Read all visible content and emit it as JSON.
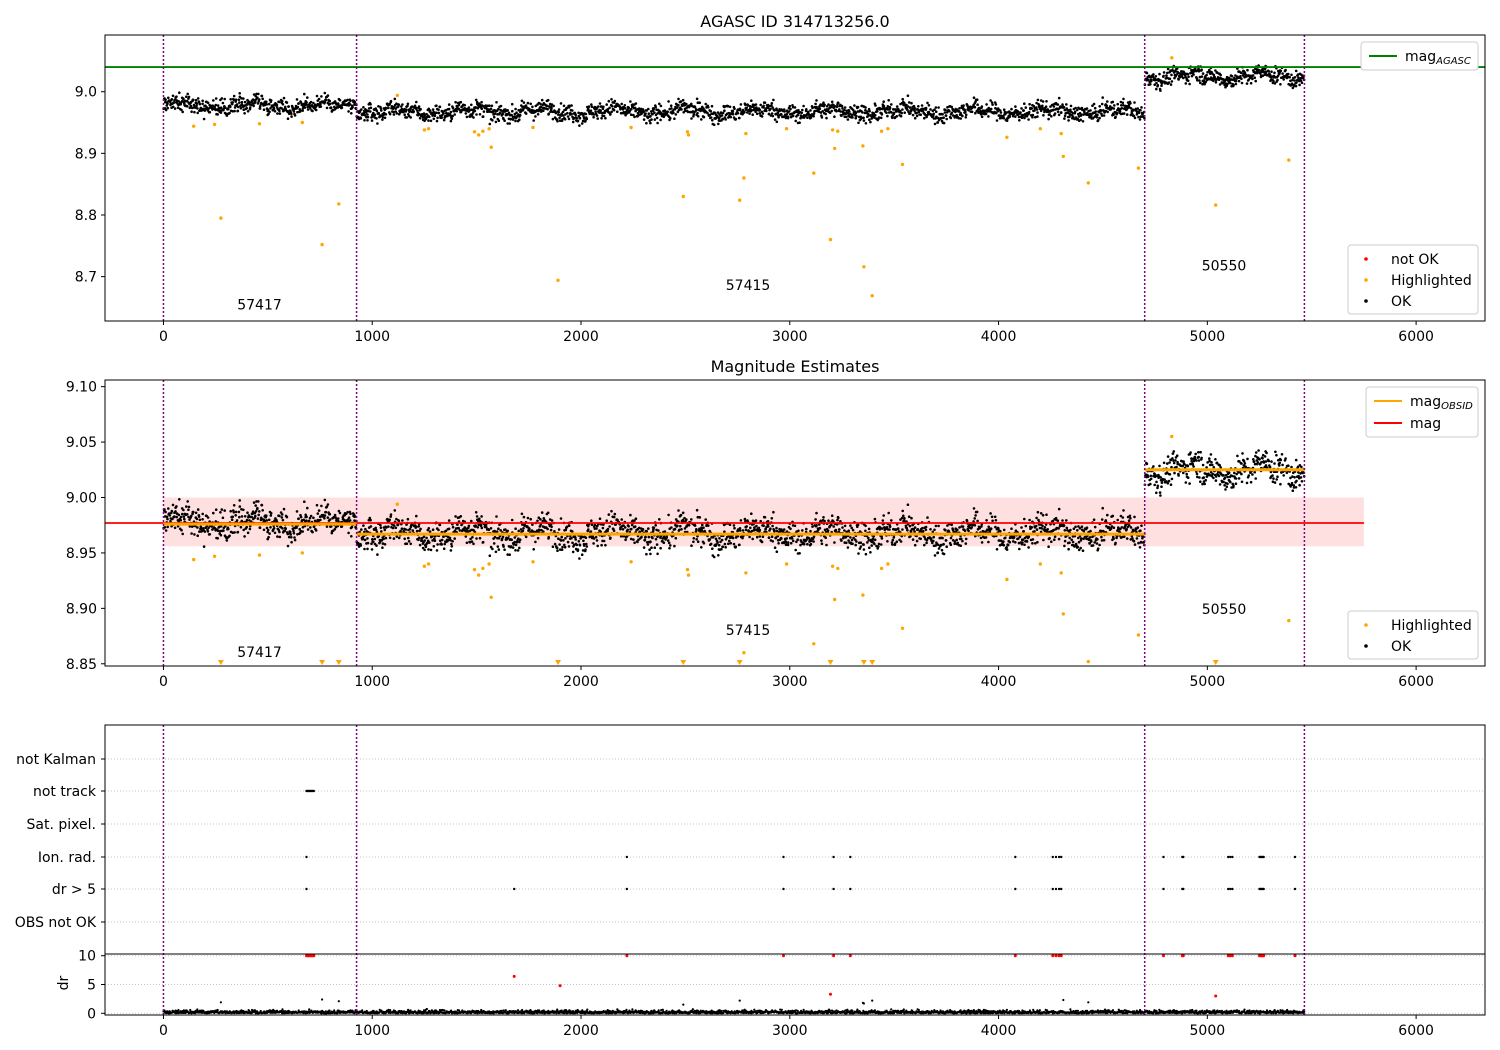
{
  "colors": {
    "ok": "#000000",
    "not_ok": "#ff0000",
    "highlighted": "#ffa500",
    "mag_agasc": "#008000",
    "mag_obsid": "#ffa500",
    "mag": "#ff0000",
    "band": "#ff0000",
    "obsid_boundary": "#800080",
    "grid": "#b0b0b0"
  },
  "chart_data": [
    {
      "type": "scatter",
      "title": "AGASC ID 314713256.0",
      "xlim": [
        -280,
        6330
      ],
      "ylim": [
        8.628,
        9.092
      ],
      "xticks": [
        0,
        1000,
        2000,
        3000,
        4000,
        5000,
        6000
      ],
      "yticks": [
        8.7,
        8.8,
        8.9,
        9.0
      ],
      "ytick_format": 1,
      "legend_lines": [
        {
          "label": "mag",
          "sub": "AGASC",
          "color": "#008000"
        }
      ],
      "legend_points": [
        {
          "label": "not OK",
          "color": "#ff0000"
        },
        {
          "label": "Highlighted",
          "color": "#ffa500"
        },
        {
          "label": "OK",
          "color": "#000000"
        }
      ],
      "hlines": [
        {
          "y": 9.04,
          "x0": -280,
          "x1": 6330,
          "color": "#008000"
        }
      ],
      "obsid_boundaries": [
        0,
        925,
        4700,
        5465
      ],
      "obsid_labels": [
        {
          "text": "57417",
          "x": 460,
          "y": 8.647
        },
        {
          "text": "57415",
          "x": 2800,
          "y": 8.678
        },
        {
          "text": "50550",
          "x": 5080,
          "y": 8.71
        }
      ],
      "ok_segments": [
        {
          "x0": 0,
          "x1": 925,
          "mean": 8.978,
          "spread": 0.012
        },
        {
          "x0": 925,
          "x1": 4700,
          "mean": 8.968,
          "spread": 0.012
        },
        {
          "x0": 4700,
          "x1": 5465,
          "mean": 9.025,
          "spread": 0.012
        }
      ],
      "highlighted": [
        [
          145,
          8.944
        ],
        [
          245,
          8.947
        ],
        [
          275,
          8.795
        ],
        [
          460,
          8.948
        ],
        [
          665,
          8.95
        ],
        [
          760,
          8.752
        ],
        [
          840,
          8.818
        ],
        [
          1120,
          8.994
        ],
        [
          1250,
          8.938
        ],
        [
          1270,
          8.94
        ],
        [
          1490,
          8.935
        ],
        [
          1510,
          8.93
        ],
        [
          1530,
          8.936
        ],
        [
          1560,
          8.94
        ],
        [
          1570,
          8.91
        ],
        [
          1770,
          8.942
        ],
        [
          1890,
          8.694
        ],
        [
          2240,
          8.942
        ],
        [
          2490,
          8.83
        ],
        [
          2510,
          8.935
        ],
        [
          2515,
          8.93
        ],
        [
          2760,
          8.824
        ],
        [
          2780,
          8.86
        ],
        [
          2790,
          8.932
        ],
        [
          2985,
          8.94
        ],
        [
          3115,
          8.868
        ],
        [
          3195,
          8.76
        ],
        [
          3205,
          8.938
        ],
        [
          3215,
          8.908
        ],
        [
          3230,
          8.936
        ],
        [
          3350,
          8.912
        ],
        [
          3355,
          8.716
        ],
        [
          3395,
          8.669
        ],
        [
          3440,
          8.936
        ],
        [
          3470,
          8.94
        ],
        [
          3540,
          8.882
        ],
        [
          4040,
          8.926
        ],
        [
          4200,
          8.94
        ],
        [
          4300,
          8.932
        ],
        [
          4310,
          8.895
        ],
        [
          4430,
          8.852
        ],
        [
          4670,
          8.876
        ],
        [
          4830,
          9.055
        ],
        [
          5040,
          8.816
        ],
        [
          5390,
          8.889
        ]
      ],
      "not_ok": [],
      "xlabel": "",
      "ylabel": ""
    },
    {
      "type": "scatter",
      "title": "Magnitude Estimates",
      "xlim": [
        -280,
        6330
      ],
      "ylim": [
        8.848,
        9.106
      ],
      "xticks": [
        0,
        1000,
        2000,
        3000,
        4000,
        5000,
        6000
      ],
      "yticks": [
        8.85,
        8.9,
        8.95,
        9.0,
        9.05,
        9.1
      ],
      "ytick_format": 2,
      "legend_lines": [
        {
          "label": "mag",
          "sub": "OBSID",
          "color": "#ffa500"
        },
        {
          "label": "mag",
          "sub": "",
          "color": "#ff0000"
        }
      ],
      "legend_points": [
        {
          "label": "Highlighted",
          "color": "#ffa500"
        },
        {
          "label": "OK",
          "color": "#000000"
        }
      ],
      "band": {
        "x0": 0,
        "x1": 5750,
        "y0": 8.956,
        "y1": 9.0
      },
      "hlines": [
        {
          "y": 8.977,
          "x0": -280,
          "x1": 5750,
          "color": "#ff0000"
        },
        {
          "y": 8.976,
          "x0": 0,
          "x1": 925,
          "color": "#ffa500"
        },
        {
          "y": 8.967,
          "x0": 925,
          "x1": 4700,
          "color": "#ffa500"
        },
        {
          "y": 9.025,
          "x0": 4700,
          "x1": 5465,
          "color": "#ffa500"
        }
      ],
      "obsid_boundaries": [
        0,
        925,
        4700,
        5465
      ],
      "obsid_labels": [
        {
          "text": "57417",
          "x": 460,
          "y": 8.856
        },
        {
          "text": "57415",
          "x": 2800,
          "y": 8.876
        },
        {
          "text": "50550",
          "x": 5080,
          "y": 8.895
        }
      ],
      "ok_segments": [
        {
          "x0": 0,
          "x1": 925,
          "mean": 8.978,
          "spread": 0.012
        },
        {
          "x0": 925,
          "x1": 4700,
          "mean": 8.968,
          "spread": 0.012
        },
        {
          "x0": 4700,
          "x1": 5465,
          "mean": 9.025,
          "spread": 0.012
        }
      ],
      "highlighted": [
        [
          145,
          8.944
        ],
        [
          245,
          8.947
        ],
        [
          460,
          8.948
        ],
        [
          665,
          8.95
        ],
        [
          1120,
          8.994
        ],
        [
          1250,
          8.938
        ],
        [
          1270,
          8.94
        ],
        [
          1490,
          8.935
        ],
        [
          1510,
          8.93
        ],
        [
          1530,
          8.936
        ],
        [
          1560,
          8.94
        ],
        [
          1570,
          8.91
        ],
        [
          1770,
          8.942
        ],
        [
          2240,
          8.942
        ],
        [
          2510,
          8.935
        ],
        [
          2515,
          8.93
        ],
        [
          2780,
          8.86
        ],
        [
          2790,
          8.932
        ],
        [
          2985,
          8.94
        ],
        [
          3115,
          8.868
        ],
        [
          3205,
          8.938
        ],
        [
          3215,
          8.908
        ],
        [
          3230,
          8.936
        ],
        [
          3350,
          8.912
        ],
        [
          3440,
          8.936
        ],
        [
          3470,
          8.94
        ],
        [
          3540,
          8.882
        ],
        [
          4040,
          8.926
        ],
        [
          4200,
          8.94
        ],
        [
          4300,
          8.932
        ],
        [
          4310,
          8.895
        ],
        [
          4430,
          8.852
        ],
        [
          4670,
          8.876
        ],
        [
          4830,
          9.055
        ],
        [
          5390,
          8.889
        ]
      ],
      "clipped_low": [
        275,
        760,
        840,
        1890,
        2490,
        2760,
        3195,
        3355,
        3395,
        5040
      ],
      "xlabel": "",
      "ylabel": ""
    },
    {
      "type": "scatter",
      "title": "",
      "xlim": [
        -280,
        6330
      ],
      "xticks": [
        0,
        1000,
        2000,
        3000,
        4000,
        5000,
        6000
      ],
      "flags_categories": [
        "not Kalman",
        "not track",
        "Sat. pixel.",
        "Ion. rad.",
        "dr > 5",
        "OBS not OK"
      ],
      "flags": {
        "not track": [
          685,
          690,
          695,
          700,
          705,
          710,
          715,
          720
        ],
        "Ion. rad.": [
          685,
          2220,
          2970,
          3210,
          3290,
          4080,
          4260,
          4275,
          4290,
          4300,
          4790,
          4880,
          4885,
          5100,
          5110,
          5120,
          5250,
          5255,
          5260,
          5265,
          5270,
          5420
        ],
        "dr > 5": [
          685,
          1680,
          2220,
          2970,
          3210,
          3290,
          4080,
          4260,
          4275,
          4290,
          4300,
          4790,
          4880,
          4885,
          5100,
          5110,
          5120,
          5250,
          5255,
          5260,
          5265,
          5270,
          5420
        ]
      },
      "dr_ylabel": "dr",
      "dr_ylim": [
        -0.3,
        10.3
      ],
      "dr_yticks": [
        0,
        5,
        10
      ],
      "dr_ok_max": 0.7,
      "dr_red": [
        [
          685,
          10
        ],
        [
          690,
          10
        ],
        [
          695,
          10
        ],
        [
          700,
          10
        ],
        [
          705,
          10
        ],
        [
          710,
          10
        ],
        [
          715,
          10
        ],
        [
          720,
          10
        ],
        [
          1680,
          6.4
        ],
        [
          1900,
          4.8
        ],
        [
          2220,
          10
        ],
        [
          2970,
          10
        ],
        [
          3195,
          3.3
        ],
        [
          3210,
          10
        ],
        [
          3290,
          10
        ],
        [
          4080,
          10
        ],
        [
          4260,
          10
        ],
        [
          4275,
          10
        ],
        [
          4290,
          10
        ],
        [
          4300,
          10
        ],
        [
          4790,
          10
        ],
        [
          4880,
          10
        ],
        [
          4885,
          10
        ],
        [
          5040,
          3.0
        ],
        [
          5100,
          10
        ],
        [
          5110,
          10
        ],
        [
          5120,
          10
        ],
        [
          5250,
          10
        ],
        [
          5255,
          10
        ],
        [
          5260,
          10
        ],
        [
          5265,
          10
        ],
        [
          5270,
          10
        ],
        [
          5420,
          10
        ]
      ],
      "dr_black_extra": [
        [
          275,
          1.9
        ],
        [
          760,
          2.4
        ],
        [
          840,
          2.1
        ],
        [
          2760,
          2.2
        ],
        [
          3355,
          1.7
        ],
        [
          3395,
          2.2
        ],
        [
          4310,
          2.3
        ],
        [
          4430,
          1.9
        ],
        [
          2490,
          1.5
        ],
        [
          3350,
          1.8
        ]
      ],
      "obsid_boundaries": [
        0,
        925,
        4700,
        5465
      ],
      "xlabel": ""
    }
  ]
}
